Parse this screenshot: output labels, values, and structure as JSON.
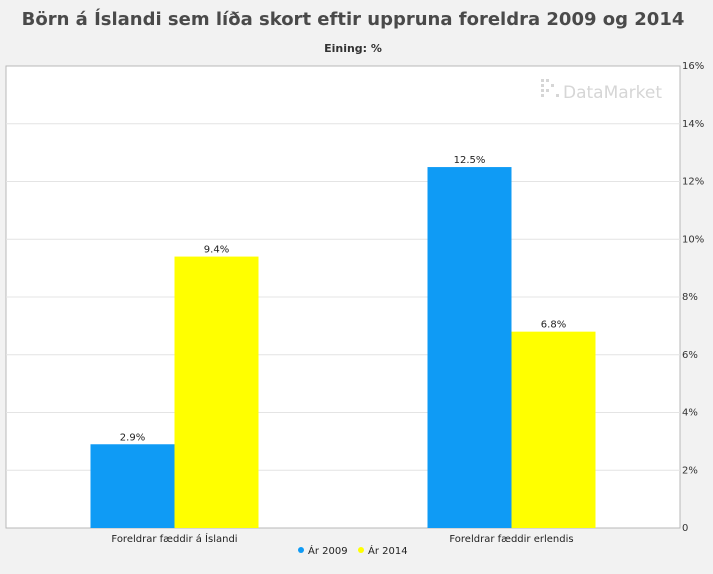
{
  "chart_data": {
    "type": "bar",
    "title": "Börn á Íslandi sem líða skort eftir uppruna foreldra 2009 og 2014",
    "subtitle": "Eining: %",
    "watermark": "DataMarket",
    "categories": [
      "Foreldrar fæddir á Íslandi",
      "Foreldrar fæddir erlendis"
    ],
    "series": [
      {
        "name": "Ár 2009",
        "color": "#0f9bf5",
        "values": [
          2.9,
          12.5
        ],
        "labels": [
          "2.9%",
          "12.5%"
        ]
      },
      {
        "name": "Ár 2014",
        "color": "#ffff00",
        "values": [
          9.4,
          6.8
        ],
        "labels": [
          "9.4%",
          "6.8%"
        ]
      }
    ],
    "ylim": [
      0,
      16
    ],
    "yticks": [
      0,
      2,
      4,
      6,
      8,
      10,
      12,
      14,
      16
    ],
    "ytick_labels": [
      "0",
      "2%",
      "4%",
      "6%",
      "8%",
      "10%",
      "12%",
      "14%",
      "16%"
    ],
    "yaxis_side": "right",
    "grid": true,
    "legend_position": "bottom"
  }
}
